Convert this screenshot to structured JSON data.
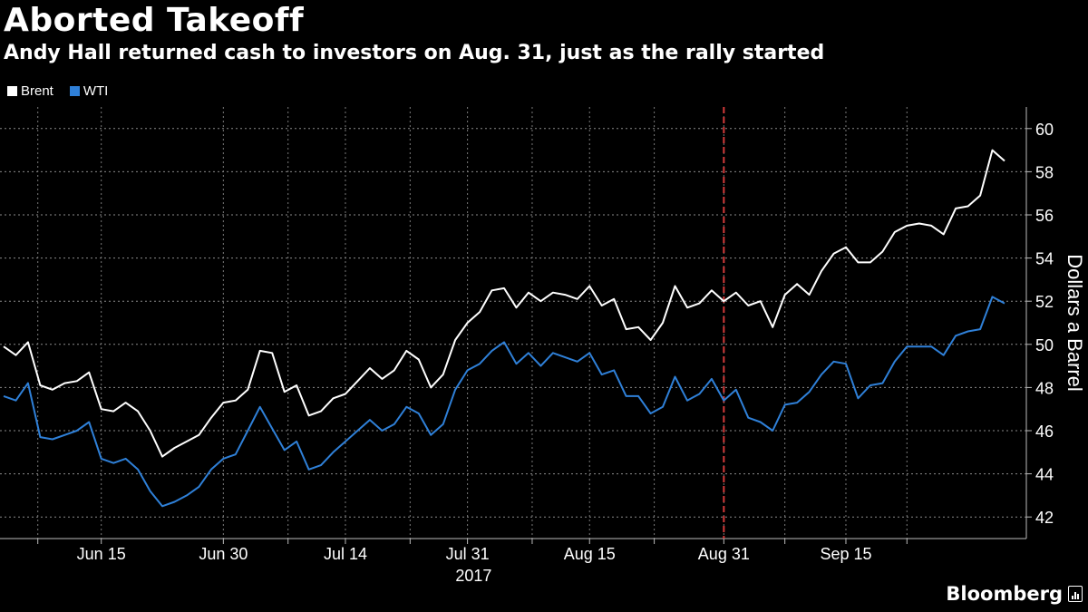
{
  "header": {
    "title": "Aborted Takeoff",
    "subtitle": "Andy Hall returned cash to investors on Aug. 31, just as the rally started"
  },
  "legend": [
    {
      "label": "Brent",
      "color": "#ffffff"
    },
    {
      "label": "WTI",
      "color": "#2f80d8"
    }
  ],
  "footer": {
    "brand": "Bloomberg",
    "brand_icon": "bloomberg-logo-icon"
  },
  "chart_data": {
    "type": "line",
    "title": "Aborted Takeoff",
    "subtitle": "Andy Hall returned cash to investors on Aug. 31, just as the rally started",
    "xlabel": "",
    "ylabel": "Dollars a Barrel",
    "ylim": [
      41,
      61
    ],
    "yticks": [
      42,
      44,
      46,
      48,
      50,
      52,
      54,
      56,
      58,
      60
    ],
    "x_index_range": [
      0,
      77
    ],
    "xticks": [
      {
        "index": 8,
        "label": "Jun 15"
      },
      {
        "index": 18,
        "label": "Jun 30"
      },
      {
        "index": 28,
        "label": "Jul 14"
      },
      {
        "index": 38,
        "label": "Jul 31"
      },
      {
        "index": 48,
        "label": "Aug 15"
      },
      {
        "index": 59,
        "label": "Aug 31"
      },
      {
        "index": 69,
        "label": "Sep 15"
      }
    ],
    "minor_gridlines_index": [
      2.8,
      23.3,
      33.3,
      43.3,
      53.3,
      64,
      74
    ],
    "year_label": "2017",
    "year_label_index": 38.5,
    "annotation": {
      "type": "vertical-dashed-line",
      "index": 59,
      "label": "Aug 31",
      "color": "#d33a3a"
    },
    "series": [
      {
        "name": "Brent",
        "color": "#ffffff",
        "values": [
          49.9,
          49.5,
          50.1,
          48.1,
          47.9,
          48.2,
          48.3,
          48.7,
          47.0,
          46.9,
          47.3,
          46.9,
          46.0,
          44.8,
          45.2,
          45.5,
          45.8,
          46.6,
          47.3,
          47.4,
          47.9,
          49.7,
          49.6,
          47.8,
          48.1,
          46.7,
          46.9,
          47.5,
          47.7,
          48.3,
          48.9,
          48.4,
          48.8,
          49.7,
          49.3,
          48.0,
          48.6,
          50.2,
          51.0,
          51.5,
          52.5,
          52.6,
          51.7,
          52.4,
          52.0,
          52.4,
          52.3,
          52.1,
          52.7,
          51.8,
          52.1,
          50.7,
          50.8,
          50.2,
          51.0,
          52.7,
          51.7,
          51.9,
          52.5,
          52.0,
          52.4,
          51.8,
          52.0,
          50.8,
          52.3,
          52.8,
          52.3,
          53.4,
          54.2,
          54.5,
          53.8,
          53.8,
          54.3,
          55.2,
          55.5,
          55.6,
          55.5,
          55.1,
          56.3,
          56.4,
          56.9,
          59.0,
          58.5
        ]
      },
      {
        "name": "WTI",
        "color": "#2f80d8",
        "values": [
          47.6,
          47.4,
          48.2,
          45.7,
          45.6,
          45.8,
          46.0,
          46.4,
          44.7,
          44.5,
          44.7,
          44.2,
          43.2,
          42.5,
          42.7,
          43.0,
          43.4,
          44.2,
          44.7,
          44.9,
          46.0,
          47.1,
          46.1,
          45.1,
          45.5,
          44.2,
          44.4,
          45.0,
          45.5,
          46.0,
          46.5,
          46.0,
          46.3,
          47.1,
          46.8,
          45.8,
          46.3,
          47.9,
          48.8,
          49.1,
          49.7,
          50.1,
          49.1,
          49.6,
          49.0,
          49.6,
          49.4,
          49.2,
          49.6,
          48.6,
          48.8,
          47.6,
          47.6,
          46.8,
          47.1,
          48.5,
          47.4,
          47.7,
          48.4,
          47.4,
          47.9,
          46.6,
          46.4,
          46.0,
          47.2,
          47.3,
          47.8,
          48.6,
          49.2,
          49.1,
          47.5,
          48.1,
          48.2,
          49.2,
          49.9,
          49.9,
          49.9,
          49.5,
          50.4,
          50.6,
          50.7,
          52.2,
          51.9
        ]
      }
    ]
  }
}
